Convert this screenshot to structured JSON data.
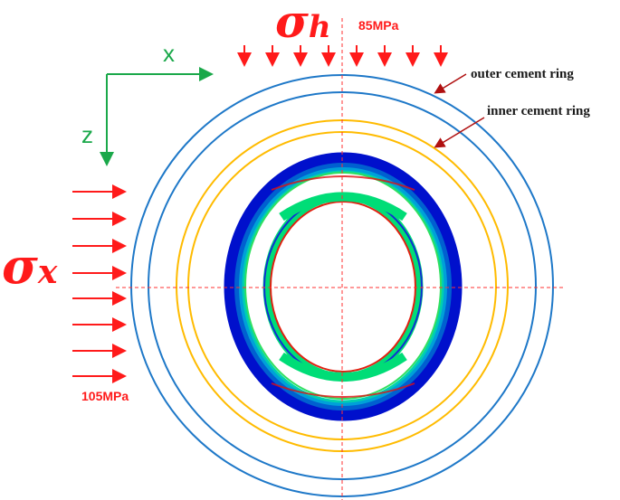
{
  "labels": {
    "sigma_h_symbol": "σ",
    "sigma_h_sub": "h",
    "sigma_h_value": "85MPa",
    "sigma_x_symbol": "σ",
    "sigma_x_sub": "x",
    "sigma_x_value": "105MPa",
    "axis_x": "x",
    "axis_z": "z",
    "outer_ring": "outer cement ring",
    "inner_ring": "inner cement ring"
  },
  "colors": {
    "load": "#ff1a1a",
    "axis": "#1aa84a",
    "outer_ring": "#1e78c8",
    "inner_ring": "#ffbb00",
    "leader": "#b01010",
    "centerline": "#ff3030"
  }
}
